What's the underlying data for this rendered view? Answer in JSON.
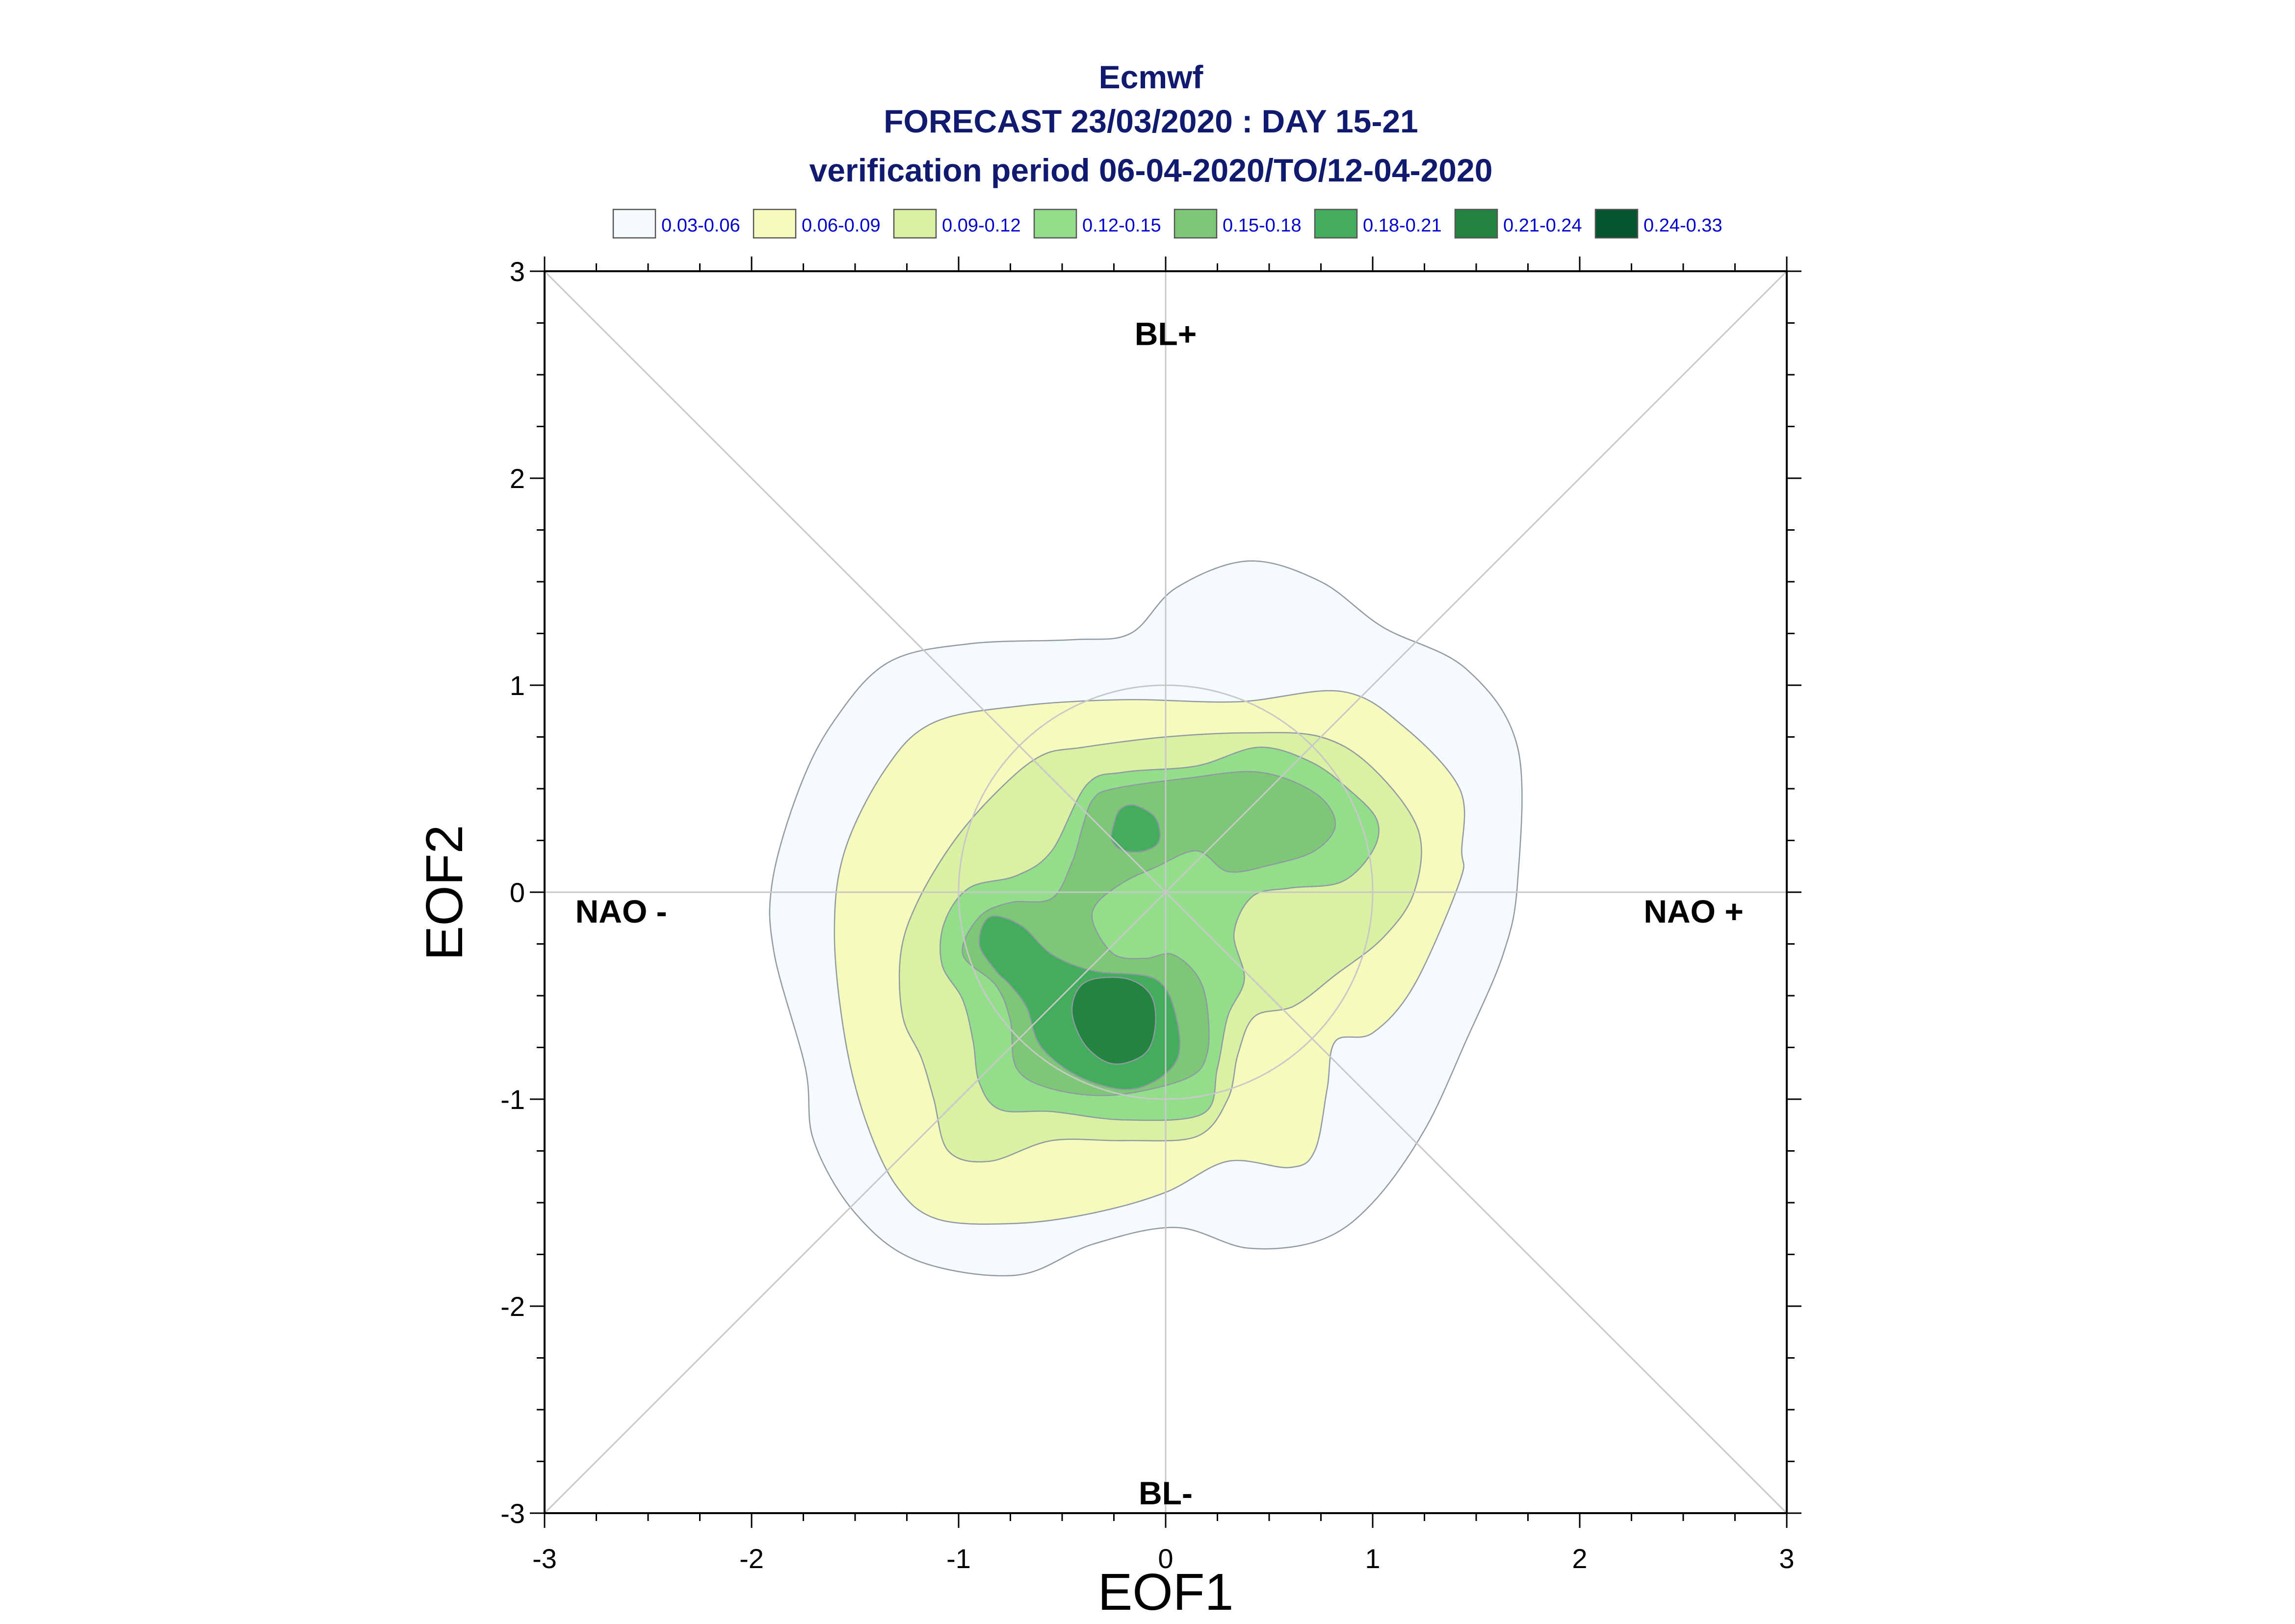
{
  "chart_data": {
    "type": "contour",
    "title_lines": [
      "Ecmwf",
      "FORECAST 23/03/2020 : DAY 15-21",
      "verification period 06-04-2020/TO/12-04-2020"
    ],
    "xlabel": "EOF1",
    "ylabel": "EOF2",
    "xlim": [
      -3,
      3
    ],
    "ylim": [
      -3,
      3
    ],
    "xticks": [
      -3,
      -2,
      -1,
      0,
      1,
      2,
      3
    ],
    "yticks": [
      -3,
      -2,
      -1,
      0,
      1,
      2,
      3
    ],
    "xtick_labels": [
      "-3",
      "-2",
      "-1",
      "0",
      "1",
      "2",
      "3"
    ],
    "ytick_labels": [
      "-3",
      "-2",
      "-1",
      "0",
      "1",
      "2",
      "3"
    ],
    "regime_labels": [
      {
        "text": "BL+",
        "x": 0,
        "y": 2.7
      },
      {
        "text": "BL-",
        "x": 0,
        "y": -2.9
      },
      {
        "text": "NAO -",
        "x": -2.63,
        "y": -0.09
      },
      {
        "text": "NAO +",
        "x": 2.55,
        "y": -0.09
      }
    ],
    "reference_circle_radius": 1.0,
    "legend": {
      "placement": "top",
      "entries": [
        {
          "label": "0.03-0.06",
          "color": "#f5fafd"
        },
        {
          "label": "0.06-0.09",
          "color": "#f6fbbd"
        },
        {
          "label": "0.09-0.12",
          "color": "#daf0a2"
        },
        {
          "label": "0.12-0.15",
          "color": "#92de8b"
        },
        {
          "label": "0.15-0.18",
          "color": "#7dc777"
        },
        {
          "label": "0.18-0.21",
          "color": "#43ac5d"
        },
        {
          "label": "0.21-0.24",
          "color": "#23843f"
        },
        {
          "label": "0.24-0.33",
          "color": "#03542f"
        }
      ]
    },
    "contours": [
      {
        "level": "0.03-0.06",
        "color": "#f5fafd",
        "points": [
          [
            -0.17,
            1.25
          ],
          [
            0.05,
            1.47
          ],
          [
            0.4,
            1.6
          ],
          [
            0.75,
            1.5
          ],
          [
            1.05,
            1.28
          ],
          [
            1.45,
            1.08
          ],
          [
            1.7,
            0.7
          ],
          [
            1.7,
            0.05
          ],
          [
            1.63,
            -0.3
          ],
          [
            1.45,
            -0.72
          ],
          [
            1.25,
            -1.15
          ],
          [
            1.0,
            -1.5
          ],
          [
            0.75,
            -1.68
          ],
          [
            0.4,
            -1.72
          ],
          [
            0.05,
            -1.62
          ],
          [
            -0.35,
            -1.7
          ],
          [
            -0.72,
            -1.85
          ],
          [
            -1.2,
            -1.78
          ],
          [
            -1.5,
            -1.55
          ],
          [
            -1.7,
            -1.2
          ],
          [
            -1.74,
            -0.85
          ],
          [
            -1.89,
            -0.3
          ],
          [
            -1.9,
            0.05
          ],
          [
            -1.77,
            0.5
          ],
          [
            -1.6,
            0.83
          ],
          [
            -1.34,
            1.11
          ],
          [
            -0.95,
            1.2
          ],
          [
            -0.45,
            1.22
          ]
        ]
      },
      {
        "level": "0.06-0.09",
        "color": "#f6fbbd",
        "points": [
          [
            -0.2,
            0.93
          ],
          [
            0.35,
            0.92
          ],
          [
            0.85,
            0.97
          ],
          [
            1.15,
            0.8
          ],
          [
            1.42,
            0.5
          ],
          [
            1.43,
            0.2
          ],
          [
            1.42,
            0.05
          ],
          [
            1.2,
            -0.45
          ],
          [
            1.0,
            -0.68
          ],
          [
            0.82,
            -0.72
          ],
          [
            0.78,
            -0.95
          ],
          [
            0.72,
            -1.25
          ],
          [
            0.6,
            -1.33
          ],
          [
            0.3,
            -1.3
          ],
          [
            0.0,
            -1.45
          ],
          [
            -0.35,
            -1.55
          ],
          [
            -0.72,
            -1.6
          ],
          [
            -1.1,
            -1.58
          ],
          [
            -1.3,
            -1.42
          ],
          [
            -1.45,
            -1.1
          ],
          [
            -1.55,
            -0.7
          ],
          [
            -1.6,
            -0.2
          ],
          [
            -1.55,
            0.2
          ],
          [
            -1.35,
            0.6
          ],
          [
            -1.12,
            0.82
          ],
          [
            -0.7,
            0.9
          ]
        ]
      },
      {
        "level": "0.09-0.12",
        "color": "#daf0a2",
        "points": [
          [
            -0.4,
            0.7
          ],
          [
            0.0,
            0.75
          ],
          [
            0.4,
            0.77
          ],
          [
            0.75,
            0.75
          ],
          [
            1.0,
            0.6
          ],
          [
            1.22,
            0.3
          ],
          [
            1.2,
            0.0
          ],
          [
            1.05,
            -0.22
          ],
          [
            0.82,
            -0.4
          ],
          [
            0.62,
            -0.55
          ],
          [
            0.43,
            -0.6
          ],
          [
            0.35,
            -0.78
          ],
          [
            0.3,
            -1.0
          ],
          [
            0.15,
            -1.18
          ],
          [
            -0.2,
            -1.2
          ],
          [
            -0.55,
            -1.2
          ],
          [
            -0.85,
            -1.3
          ],
          [
            -1.05,
            -1.25
          ],
          [
            -1.12,
            -1.0
          ],
          [
            -1.18,
            -0.8
          ],
          [
            -1.27,
            -0.6
          ],
          [
            -1.28,
            -0.3
          ],
          [
            -1.2,
            -0.05
          ],
          [
            -1.02,
            0.25
          ],
          [
            -0.8,
            0.5
          ],
          [
            -0.6,
            0.66
          ]
        ]
      },
      {
        "level": "0.12-0.15",
        "color": "#92de8b",
        "points": [
          [
            -0.38,
            0.52
          ],
          [
            -0.2,
            0.58
          ],
          [
            0.15,
            0.61
          ],
          [
            0.45,
            0.7
          ],
          [
            0.7,
            0.63
          ],
          [
            0.88,
            0.5
          ],
          [
            1.02,
            0.35
          ],
          [
            1.0,
            0.2
          ],
          [
            0.85,
            0.05
          ],
          [
            0.6,
            0.02
          ],
          [
            0.42,
            -0.02
          ],
          [
            0.33,
            -0.2
          ],
          [
            0.38,
            -0.42
          ],
          [
            0.3,
            -0.6
          ],
          [
            0.25,
            -0.85
          ],
          [
            0.18,
            -1.07
          ],
          [
            -0.2,
            -1.1
          ],
          [
            -0.55,
            -1.06
          ],
          [
            -0.8,
            -1.05
          ],
          [
            -0.9,
            -0.92
          ],
          [
            -0.93,
            -0.72
          ],
          [
            -0.98,
            -0.52
          ],
          [
            -1.08,
            -0.35
          ],
          [
            -1.07,
            -0.15
          ],
          [
            -0.95,
            0.02
          ],
          [
            -0.72,
            0.08
          ],
          [
            -0.55,
            0.2
          ]
        ]
      },
      {
        "level": "0.15-0.18",
        "color": "#7dc777",
        "points": [
          [
            -0.35,
            0.45
          ],
          [
            -0.25,
            0.5
          ],
          [
            0.1,
            0.55
          ],
          [
            0.45,
            0.58
          ],
          [
            0.72,
            0.48
          ],
          [
            0.82,
            0.33
          ],
          [
            0.72,
            0.2
          ],
          [
            0.5,
            0.13
          ],
          [
            0.3,
            0.1
          ],
          [
            0.15,
            0.2
          ],
          [
            -0.05,
            0.12
          ],
          [
            -0.2,
            0.05
          ],
          [
            -0.33,
            -0.05
          ],
          [
            -0.35,
            -0.15
          ],
          [
            -0.25,
            -0.3
          ],
          [
            -0.1,
            -0.32
          ],
          [
            0.03,
            -0.3
          ],
          [
            0.15,
            -0.4
          ],
          [
            0.2,
            -0.55
          ],
          [
            0.2,
            -0.78
          ],
          [
            0.1,
            -0.9
          ],
          [
            -0.25,
            -0.98
          ],
          [
            -0.55,
            -0.95
          ],
          [
            -0.72,
            -0.85
          ],
          [
            -0.75,
            -0.62
          ],
          [
            -0.82,
            -0.45
          ],
          [
            -0.98,
            -0.3
          ],
          [
            -0.9,
            -0.12
          ],
          [
            -0.75,
            -0.05
          ],
          [
            -0.55,
            -0.03
          ],
          [
            -0.45,
            0.15
          ],
          [
            -0.4,
            0.32
          ]
        ]
      },
      {
        "level": "0.18-0.21",
        "color": "#43ac5d",
        "points": [
          [
            -0.85,
            -0.12
          ],
          [
            -0.7,
            -0.16
          ],
          [
            -0.55,
            -0.3
          ],
          [
            -0.35,
            -0.38
          ],
          [
            -0.05,
            -0.42
          ],
          [
            0.05,
            -0.6
          ],
          [
            0.05,
            -0.82
          ],
          [
            -0.15,
            -0.95
          ],
          [
            -0.4,
            -0.9
          ],
          [
            -0.6,
            -0.75
          ],
          [
            -0.67,
            -0.56
          ],
          [
            -0.75,
            -0.45
          ],
          [
            -0.82,
            -0.38
          ],
          [
            -0.9,
            -0.25
          ]
        ]
      },
      {
        "level": "0.18-0.21",
        "color": "#43ac5d",
        "points": [
          [
            -0.15,
            0.42
          ],
          [
            -0.05,
            0.36
          ],
          [
            -0.03,
            0.25
          ],
          [
            -0.1,
            0.2
          ],
          [
            -0.2,
            0.2
          ],
          [
            -0.26,
            0.25
          ],
          [
            -0.25,
            0.33
          ],
          [
            -0.22,
            0.4
          ]
        ]
      },
      {
        "level": "0.21-0.24",
        "color": "#23843f",
        "points": [
          [
            -0.35,
            -0.42
          ],
          [
            -0.18,
            -0.42
          ],
          [
            -0.07,
            -0.5
          ],
          [
            -0.05,
            -0.65
          ],
          [
            -0.1,
            -0.78
          ],
          [
            -0.25,
            -0.83
          ],
          [
            -0.38,
            -0.75
          ],
          [
            -0.45,
            -0.6
          ],
          [
            -0.43,
            -0.48
          ]
        ]
      }
    ]
  }
}
